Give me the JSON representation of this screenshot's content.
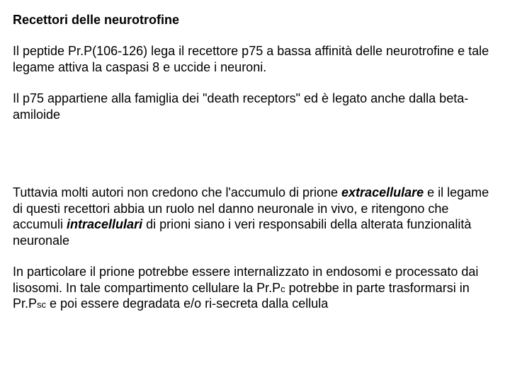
{
  "title": "Recettori delle neurotrofine",
  "p1a": "Il peptide Pr.P(106-126) lega il recettore p75 a bassa affinità delle neurotrofine e tale legame attiva la caspasi 8 e uccide i neuroni.",
  "p2a": "Il p75 appartiene alla famiglia dei \"death receptors\" ed è legato anche dalla beta-amiloide",
  "p3_pre": "Tuttavia molti autori non credono che l'accumulo di prione ",
  "p3_em1": "extracellulare",
  "p3_mid": " e il legame di questi recettori abbia un ruolo nel danno neuronale in vivo, e ritengono che accumuli ",
  "p3_em2": "intracellulari",
  "p3_post": " di prioni siano i veri responsabili della alterata funzionalità neuronale",
  "p4_a": "In particolare il prione potrebbe essere internalizzato in endosomi e processato dai lisosomi. In tale compartimento cellulare la Pr.P",
  "p4_sc1": "c",
  "p4_b": " potrebbe in parte trasformarsi in Pr.P",
  "p4_sc2": "sc",
  "p4_c": " e poi essere degradata e/o ri-secreta dalla cellula"
}
